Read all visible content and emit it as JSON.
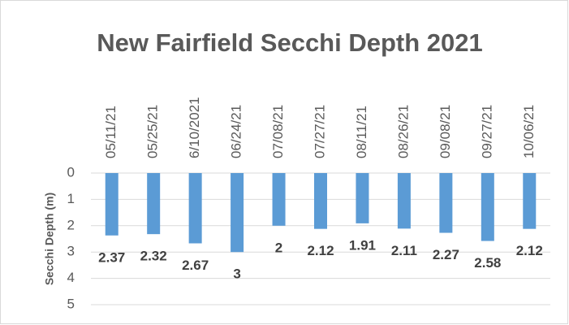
{
  "chart_data": {
    "type": "bar",
    "title": "New Fairfield Secchi Depth 2021",
    "y_label": "Secchi Depth (m)",
    "categories": [
      "05/11/21",
      "05/25/21",
      "6/10/2021",
      "06/24/21",
      "07/08/21",
      "07/27/21",
      "08/11/21",
      "08/26/21",
      "09/08/21",
      "09/27/21",
      "10/06/21"
    ],
    "values": [
      2.37,
      2.32,
      2.67,
      3,
      2,
      2.12,
      1.91,
      2.11,
      2.27,
      2.58,
      2.12
    ],
    "color": "#5b9bd5",
    "ylim": [
      0,
      5
    ],
    "yticks": [
      0,
      1,
      2,
      3,
      4,
      5
    ],
    "y_inverted": true,
    "grid": true
  }
}
